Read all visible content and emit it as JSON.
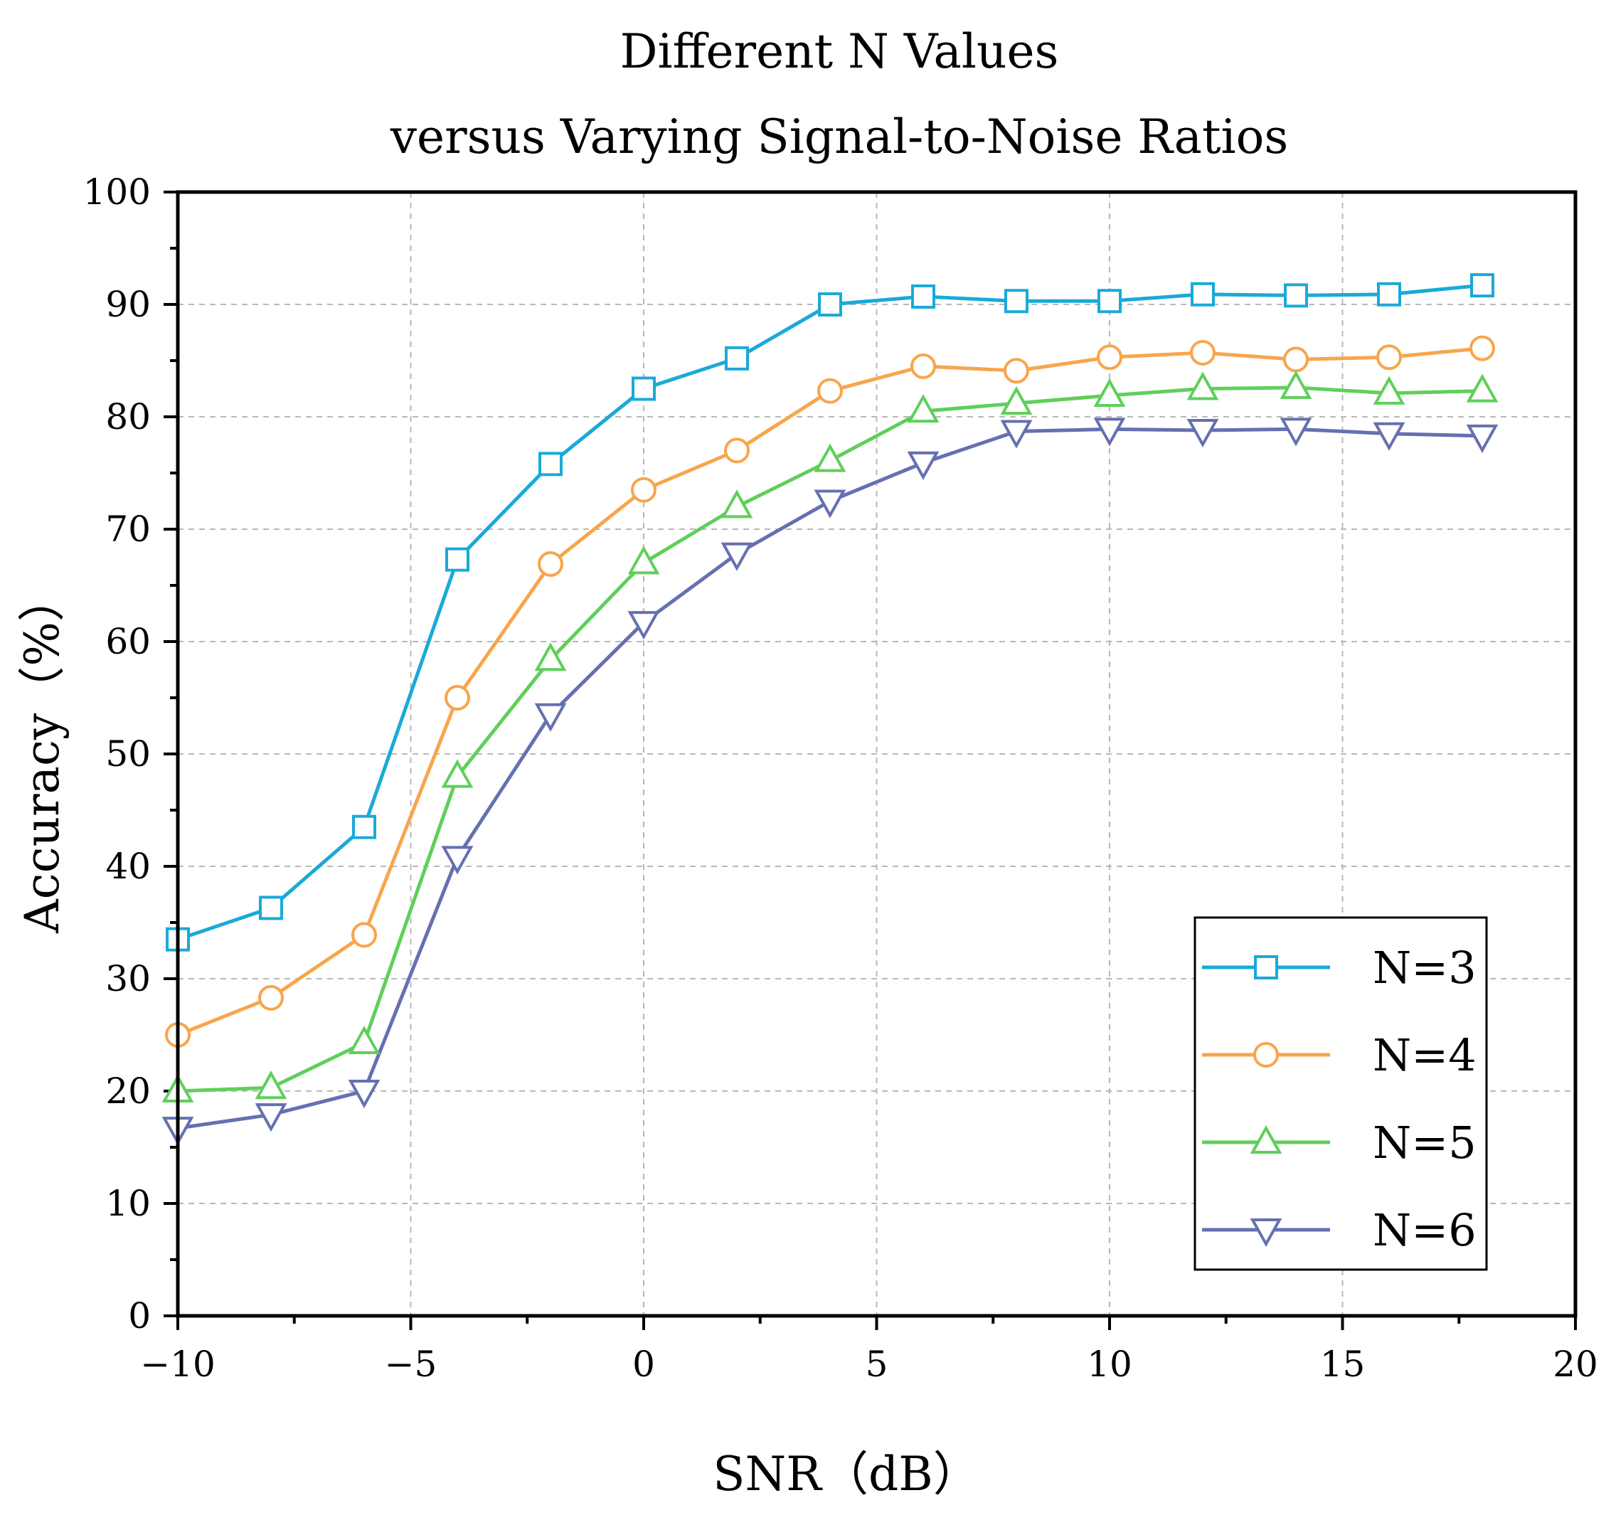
{
  "chart_data": {
    "type": "line",
    "title": "Different N Values",
    "subtitle": "versus Varying Signal-to-Noise Ratios",
    "xlabel": "SNR（dB）",
    "ylabel": "Accuracy（%）",
    "xlim": [
      -10,
      20
    ],
    "ylim": [
      0,
      100
    ],
    "xticks": [
      -10,
      -5,
      0,
      5,
      10,
      15,
      20
    ],
    "xtick_labels": [
      "−10",
      "−5",
      "0",
      "5",
      "10",
      "15",
      "20"
    ],
    "yticks": [
      0,
      10,
      20,
      30,
      40,
      50,
      60,
      70,
      80,
      90,
      100
    ],
    "ytick_labels": [
      "0",
      "10",
      "20",
      "30",
      "40",
      "50",
      "60",
      "70",
      "80",
      "90",
      "100"
    ],
    "grid": true,
    "legend_position": "bottom-right",
    "x": [
      -10,
      -8,
      -6,
      -4,
      -2,
      0,
      2,
      4,
      6,
      8,
      10,
      12,
      14,
      16,
      18
    ],
    "series": [
      {
        "name": "N=3",
        "color": "#1AA9D8",
        "marker": "square",
        "values": [
          33.5,
          36.3,
          43.5,
          67.3,
          75.8,
          82.5,
          85.2,
          90.0,
          90.7,
          90.3,
          90.3,
          90.9,
          90.8,
          90.9,
          91.7
        ]
      },
      {
        "name": "N=4",
        "color": "#F8A54B",
        "marker": "circle",
        "values": [
          25.0,
          28.3,
          33.9,
          55.0,
          66.9,
          73.5,
          77.0,
          82.3,
          84.5,
          84.1,
          85.3,
          85.7,
          85.1,
          85.3,
          86.1
        ]
      },
      {
        "name": "N=5",
        "color": "#5FCF5A",
        "marker": "triangle-up",
        "values": [
          20.0,
          20.3,
          24.3,
          48.0,
          58.4,
          67.0,
          72.0,
          76.1,
          80.5,
          81.2,
          81.9,
          82.5,
          82.6,
          82.1,
          82.3
        ]
      },
      {
        "name": "N=6",
        "color": "#6570B0",
        "marker": "triangle-down",
        "values": [
          16.7,
          17.9,
          20.0,
          40.8,
          53.5,
          61.7,
          67.8,
          72.5,
          75.9,
          78.7,
          78.9,
          78.8,
          78.9,
          78.5,
          78.3
        ]
      }
    ]
  }
}
